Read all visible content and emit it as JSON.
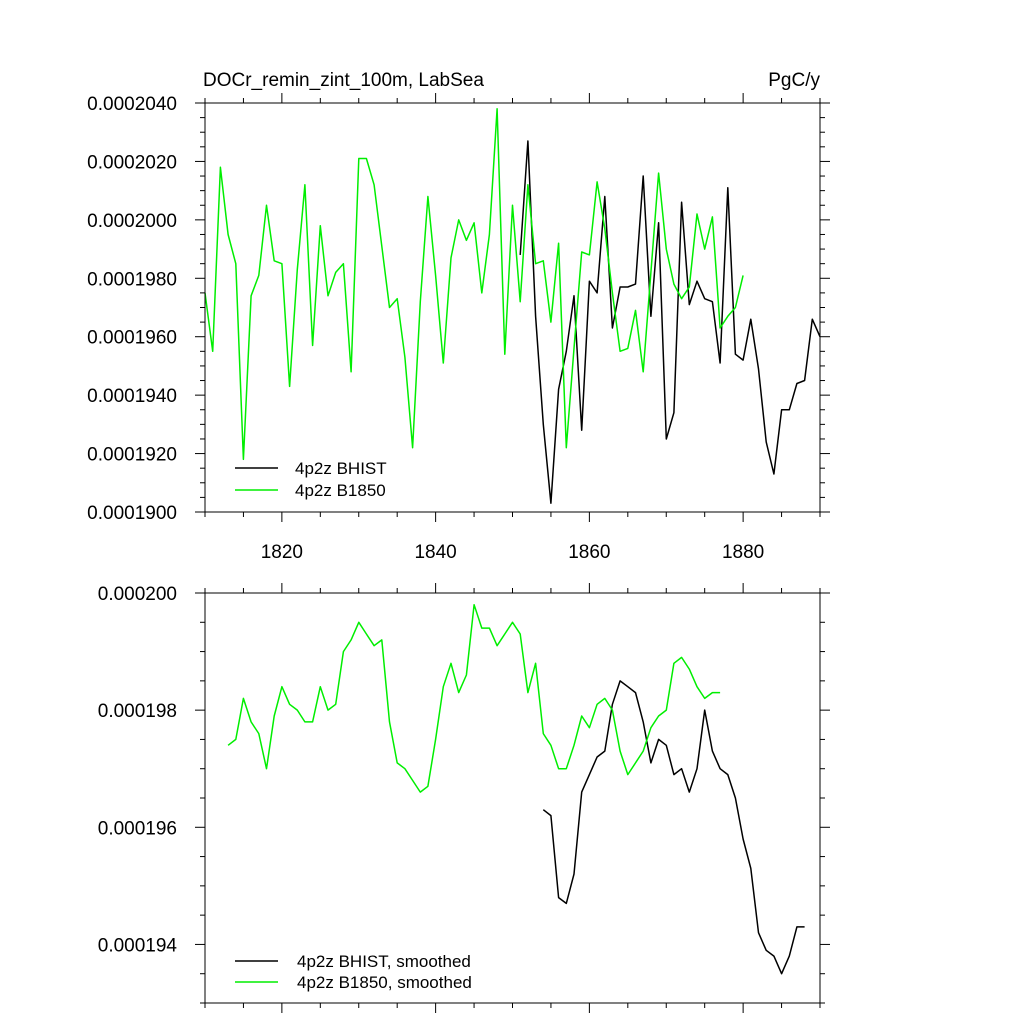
{
  "chart_data": [
    {
      "type": "line",
      "title": "DOCr_remin_zint_100m, LabSea",
      "units": "PgC/y",
      "xlim": [
        1810,
        1890
      ],
      "ylim": [
        0.00019,
        0.000204
      ],
      "x_ticks": [
        1820,
        1840,
        1860,
        1880
      ],
      "x_tick_labels": [
        "1820",
        "1840",
        "1860",
        "1880"
      ],
      "y_ticks": [
        0.00019,
        0.000192,
        0.000194,
        0.000196,
        0.000198,
        0.0002,
        0.000202,
        0.000204
      ],
      "y_tick_labels": [
        "0.0001900",
        "0.0001920",
        "0.0001940",
        "0.0001960",
        "0.0001980",
        "0.0002000",
        "0.0002020",
        "0.0002040"
      ],
      "legend_placement": "bottom-left",
      "series": [
        {
          "name": "4p2z BHIST",
          "color": "#000000",
          "x": [
            1851,
            1852,
            1853,
            1854,
            1855,
            1856,
            1857,
            1858,
            1859,
            1860,
            1861,
            1862,
            1863,
            1864,
            1865,
            1866,
            1867,
            1868,
            1869,
            1870,
            1871,
            1872,
            1873,
            1874,
            1875,
            1876,
            1877,
            1878,
            1879,
            1880,
            1881,
            1882,
            1883,
            1884,
            1885,
            1886,
            1887,
            1888,
            1889,
            1890
          ],
          "y": [
            0.0001988,
            0.0002027,
            0.0001967,
            0.000193,
            0.0001903,
            0.0001942,
            0.0001955,
            0.0001974,
            0.0001928,
            0.0001979,
            0.0001975,
            0.0002008,
            0.0001963,
            0.0001977,
            0.0001977,
            0.0001978,
            0.0002015,
            0.0001967,
            0.0001999,
            0.0001925,
            0.0001934,
            0.0002006,
            0.0001971,
            0.0001979,
            0.0001973,
            0.0001972,
            0.0001951,
            0.0002011,
            0.0001954,
            0.0001952,
            0.0001966,
            0.0001949,
            0.0001924,
            0.0001913,
            0.0001935,
            0.0001935,
            0.0001944,
            0.0001945,
            0.0001966,
            0.000196
          ]
        },
        {
          "name": "4p2z B1850",
          "color": "#00ee00",
          "x": [
            1810,
            1811,
            1812,
            1813,
            1814,
            1815,
            1816,
            1817,
            1818,
            1819,
            1820,
            1821,
            1822,
            1823,
            1824,
            1825,
            1826,
            1827,
            1828,
            1829,
            1830,
            1831,
            1832,
            1833,
            1834,
            1835,
            1836,
            1837,
            1838,
            1839,
            1840,
            1841,
            1842,
            1843,
            1844,
            1845,
            1846,
            1847,
            1848,
            1849,
            1850,
            1851,
            1852,
            1853,
            1854,
            1855,
            1856,
            1857,
            1858,
            1859,
            1860,
            1861,
            1862,
            1863,
            1864,
            1865,
            1866,
            1867,
            1868,
            1869,
            1870,
            1871,
            1872,
            1873,
            1874,
            1875,
            1876,
            1877,
            1878,
            1879,
            1880
          ],
          "y": [
            0.0001975,
            0.0001955,
            0.0002018,
            0.0001995,
            0.0001985,
            0.0001918,
            0.0001974,
            0.0001981,
            0.0002005,
            0.0001986,
            0.0001985,
            0.0001943,
            0.0001983,
            0.0002012,
            0.0001957,
            0.0001998,
            0.0001974,
            0.0001982,
            0.0001985,
            0.0001948,
            0.0002021,
            0.0002021,
            0.0002012,
            0.0001991,
            0.000197,
            0.0001973,
            0.0001953,
            0.0001922,
            0.0001972,
            0.0002008,
            0.0001981,
            0.0001951,
            0.0001987,
            0.0002,
            0.0001993,
            0.0001999,
            0.0001975,
            0.0001995,
            0.0002038,
            0.0001954,
            0.0002005,
            0.0001972,
            0.0002012,
            0.0001985,
            0.0001986,
            0.0001965,
            0.0001992,
            0.0001922,
            0.0001956,
            0.0001989,
            0.0001988,
            0.0002013,
            0.0001997,
            0.0001975,
            0.0001955,
            0.0001956,
            0.0001969,
            0.0001948,
            0.0001982,
            0.0002016,
            0.000199,
            0.0001978,
            0.0001973,
            0.0001977,
            0.0002002,
            0.000199,
            0.0002001,
            0.0001963,
            0.0001967,
            0.000197,
            0.0001981
          ]
        }
      ]
    },
    {
      "type": "line",
      "xlim": [
        1810,
        1890
      ],
      "ylim": [
        0.000193,
        0.0002
      ],
      "x_ticks": [
        1820,
        1840,
        1860,
        1880
      ],
      "y_ticks": [
        0.000194,
        0.000196,
        0.000198,
        0.0002
      ],
      "y_tick_labels": [
        "0.000194",
        "0.000196",
        "0.000198",
        "0.000200"
      ],
      "legend_placement": "bottom-left",
      "series": [
        {
          "name": "4p2z BHIST, smoothed",
          "color": "#000000",
          "x": [
            1854,
            1855,
            1856,
            1857,
            1858,
            1859,
            1860,
            1861,
            1862,
            1863,
            1864,
            1865,
            1866,
            1867,
            1868,
            1869,
            1870,
            1871,
            1872,
            1873,
            1874,
            1875,
            1876,
            1877,
            1878,
            1879,
            1880,
            1881,
            1882,
            1883,
            1884,
            1885,
            1886,
            1887,
            1888
          ],
          "y": [
            0.0001963,
            0.0001962,
            0.0001948,
            0.0001947,
            0.0001952,
            0.0001966,
            0.0001969,
            0.0001972,
            0.0001973,
            0.0001981,
            0.0001985,
            0.0001984,
            0.0001983,
            0.0001978,
            0.0001971,
            0.0001975,
            0.0001974,
            0.0001969,
            0.000197,
            0.0001966,
            0.000197,
            0.000198,
            0.0001973,
            0.000197,
            0.0001969,
            0.0001965,
            0.0001958,
            0.0001953,
            0.0001942,
            0.0001939,
            0.0001938,
            0.0001935,
            0.0001938,
            0.0001943,
            0.0001943
          ]
        },
        {
          "name": "4p2z B1850, smoothed",
          "color": "#00ee00",
          "x": [
            1813,
            1814,
            1815,
            1816,
            1817,
            1818,
            1819,
            1820,
            1821,
            1822,
            1823,
            1824,
            1825,
            1826,
            1827,
            1828,
            1829,
            1830,
            1831,
            1832,
            1833,
            1834,
            1835,
            1836,
            1837,
            1838,
            1839,
            1840,
            1841,
            1842,
            1843,
            1844,
            1845,
            1846,
            1847,
            1848,
            1849,
            1850,
            1851,
            1852,
            1853,
            1854,
            1855,
            1856,
            1857,
            1858,
            1859,
            1860,
            1861,
            1862,
            1863,
            1864,
            1865,
            1866,
            1867,
            1868,
            1869,
            1870,
            1871,
            1872,
            1873,
            1874,
            1875,
            1876,
            1877
          ],
          "y": [
            0.0001974,
            0.0001975,
            0.0001982,
            0.0001978,
            0.0001976,
            0.000197,
            0.0001979,
            0.0001984,
            0.0001981,
            0.000198,
            0.0001978,
            0.0001978,
            0.0001984,
            0.000198,
            0.0001981,
            0.000199,
            0.0001992,
            0.0001995,
            0.0001993,
            0.0001991,
            0.0001992,
            0.0001978,
            0.0001971,
            0.000197,
            0.0001968,
            0.0001966,
            0.0001967,
            0.0001975,
            0.0001984,
            0.0001988,
            0.0001983,
            0.0001986,
            0.0001998,
            0.0001994,
            0.0001994,
            0.0001991,
            0.0001993,
            0.0001995,
            0.0001993,
            0.0001983,
            0.0001988,
            0.0001976,
            0.0001974,
            0.000197,
            0.000197,
            0.0001974,
            0.0001979,
            0.0001977,
            0.0001981,
            0.0001982,
            0.000198,
            0.0001973,
            0.0001969,
            0.0001971,
            0.0001973,
            0.0001977,
            0.0001979,
            0.000198,
            0.0001988,
            0.0001989,
            0.0001987,
            0.0001984,
            0.0001982,
            0.0001983,
            0.0001983
          ]
        }
      ]
    }
  ]
}
